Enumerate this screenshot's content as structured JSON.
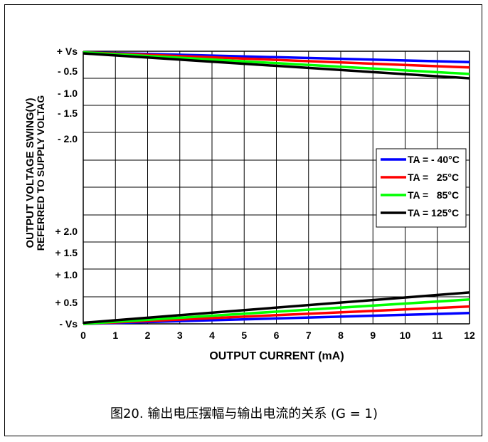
{
  "chart_data": {
    "type": "line",
    "xlabel": "OUTPUT CURRENT (mA)",
    "ylabel": "OUTPUT VOLTAGE SWING(V)",
    "ylabel2": "REFERRED TO SUPPLY VOLTAG",
    "x_ticks": [
      "0",
      "1",
      "2",
      "3",
      "4",
      "5",
      "6",
      "7",
      "8",
      "9",
      "10",
      "11",
      "12"
    ],
    "xlim": [
      0,
      12
    ],
    "y_ticks_upper": [
      "+ Vs",
      "- 0.5",
      "- 1.0",
      "- 1.5",
      "- 2.0"
    ],
    "y_ticks_lower": [
      "+ 2.0",
      "+ 1.5",
      "+ 1.0",
      "+ 0.5",
      "- Vs"
    ],
    "grid": true,
    "legend_position": "right",
    "legend": [
      {
        "label": "TA = - 40°C",
        "color": "#0000ff"
      },
      {
        "label": "TA =   25°C",
        "color": "#ff0000"
      },
      {
        "label": "TA =   85°C",
        "color": "#00ff00"
      },
      {
        "label": "TA = 125°C",
        "color": "#000000"
      }
    ],
    "series_upper": [
      {
        "color": "#0000ff",
        "x": [
          0,
          12
        ],
        "y": [
          -0.02,
          -0.2
        ]
      },
      {
        "color": "#ff0000",
        "x": [
          0,
          12
        ],
        "y": [
          -0.02,
          -0.3
        ]
      },
      {
        "color": "#00ff00",
        "x": [
          0,
          12
        ],
        "y": [
          -0.02,
          -0.42
        ]
      },
      {
        "color": "#000000",
        "x": [
          0,
          12
        ],
        "y": [
          -0.04,
          -0.5
        ]
      }
    ],
    "series_lower": [
      {
        "color": "#0000ff",
        "x": [
          0,
          12
        ],
        "y": [
          0.0,
          0.2
        ]
      },
      {
        "color": "#ff0000",
        "x": [
          0,
          12
        ],
        "y": [
          0.0,
          0.32
        ]
      },
      {
        "color": "#00ff00",
        "x": [
          0,
          12
        ],
        "y": [
          0.0,
          0.45
        ]
      },
      {
        "color": "#000000",
        "x": [
          0,
          12
        ],
        "y": [
          0.02,
          0.58
        ]
      }
    ]
  },
  "caption": "图20. 输出电压摆幅与输出电流的关系 (G = 1)"
}
